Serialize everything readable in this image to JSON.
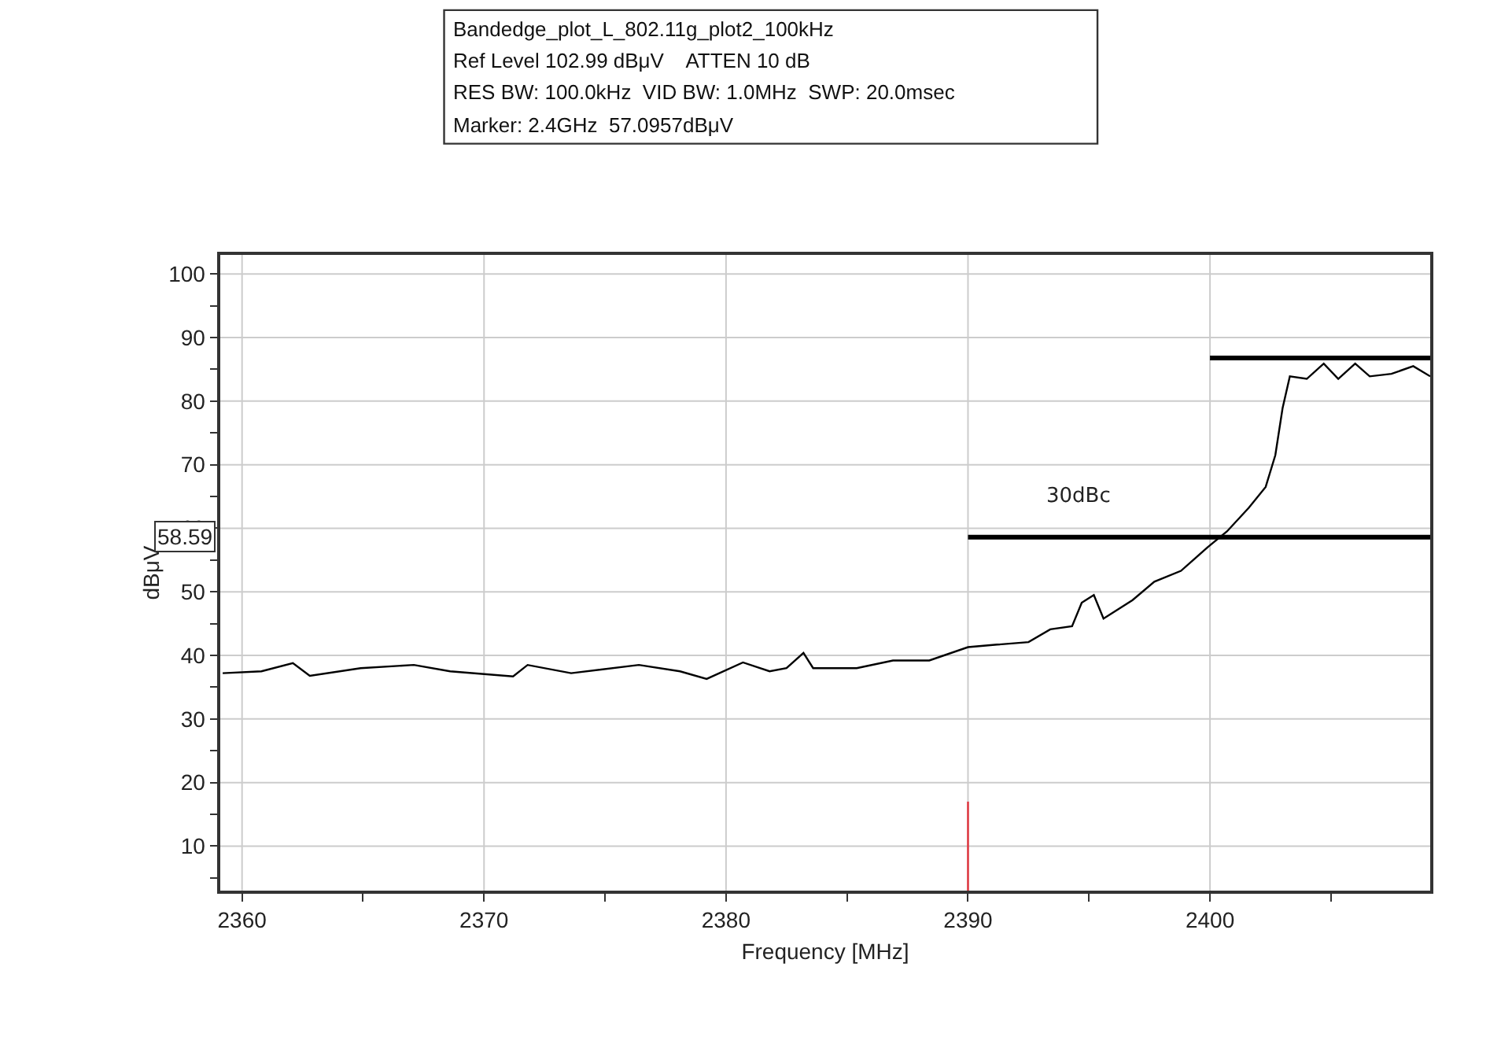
{
  "chart_data": {
    "type": "line",
    "xlabel": "Frequency [MHz]",
    "ylabel": "dBμV",
    "xlim": [
      2359.1,
      2409.1
    ],
    "ylim": [
      3,
      103
    ],
    "xticks": [
      2360,
      {
        "value": 2365,
        "label": null
      },
      2370,
      {
        "value": 2375,
        "label": null
      },
      2380,
      {
        "value": 2385,
        "label": null
      },
      2390,
      {
        "value": 2395,
        "label": null
      },
      2400,
      {
        "value": 2405,
        "label": null
      }
    ],
    "yticks": [
      {
        "value": 5,
        "label": null
      },
      10,
      {
        "value": 15,
        "label": null
      },
      20,
      {
        "value": 25,
        "label": null
      },
      30,
      {
        "value": 35,
        "label": null
      },
      40,
      {
        "value": 45,
        "label": null
      },
      50,
      {
        "value": 55,
        "label": null
      },
      60,
      {
        "value": 65,
        "label": null
      },
      70,
      {
        "value": 75,
        "label": null
      },
      80,
      {
        "value": 85,
        "label": null
      },
      90,
      {
        "value": 95,
        "label": null
      },
      100
    ],
    "grid": true,
    "line_style": "solid",
    "series": [
      {
        "color": "#000000",
        "x": [
          2359.2,
          2360.8,
          2362.1,
          2362.8,
          2364.9,
          2367.1,
          2368.6,
          2371.2,
          2371.8,
          2373.6,
          2376.4,
          2378.1,
          2379.2,
          2380.7,
          2381.8,
          2382.5,
          2383.2,
          2383.6,
          2385.4,
          2386.9,
          2388.4,
          2390.0,
          2391.2,
          2392.5,
          2393.4,
          2394.3,
          2394.7,
          2395.2,
          2395.6,
          2396.8,
          2397.7,
          2398.8,
          2399.9,
          2400.7,
          2401.6,
          2402.3,
          2402.7,
          2403.0,
          2403.3,
          2404.0,
          2404.7,
          2405.3,
          2406.0,
          2406.6,
          2407.5,
          2408.4,
          2409.1
        ],
        "values": [
          37.2,
          37.5,
          38.8,
          36.8,
          38.0,
          38.5,
          37.5,
          36.7,
          38.5,
          37.2,
          38.5,
          37.5,
          36.3,
          38.9,
          37.5,
          38.0,
          40.4,
          38.0,
          38.0,
          39.2,
          39.2,
          41.3,
          41.7,
          42.1,
          44.1,
          44.6,
          48.3,
          49.5,
          45.8,
          48.7,
          51.6,
          53.3,
          57.0,
          59.5,
          63.2,
          66.5,
          71.5,
          78.9,
          83.9,
          83.5,
          85.9,
          83.5,
          85.9,
          83.9,
          84.3,
          85.5,
          83.9
        ]
      },
      {
        "color": "#000000",
        "x": [
          2400,
          2409.1
        ],
        "values": [
          86.8,
          86.8
        ]
      },
      {
        "color": "#000000",
        "x": [
          2390,
          2409.1
        ],
        "values": [
          58.6,
          58.6
        ]
      },
      {
        "color": "#e0303a",
        "x": [
          2390,
          2390
        ],
        "values": [
          3,
          17
        ]
      }
    ],
    "annotations": [
      "Bandedge_plot_L_802.11g_plot2_100kHz",
      "Ref Level 102.99 dBμV    ATTEN 10 dB",
      "RES BW: 100.0kHz  VID BW: 1.0MHz  SWP: 20.0msec",
      "Marker: 2.4GHz  57.0957dBμV",
      "30dBc",
      "58.59"
    ]
  }
}
